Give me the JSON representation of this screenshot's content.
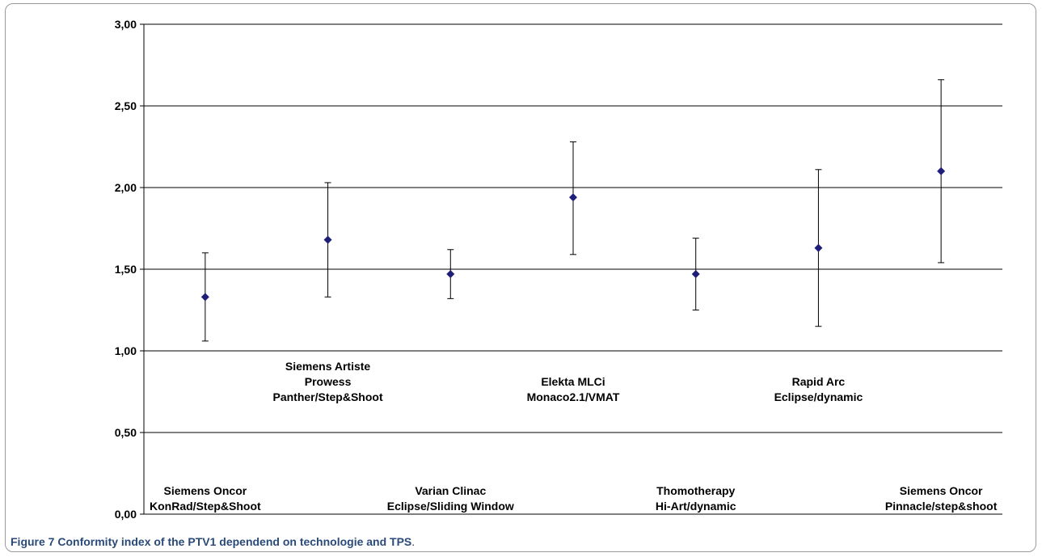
{
  "caption": {
    "label": "Figure 7",
    "text": "Conformity index of the PTV1 dependend on technologie and TPS",
    "end": "."
  },
  "colors": {
    "marker": "#1f1f7a",
    "grid": "#000000",
    "caption": "#2a4a7a"
  },
  "chart_data": {
    "type": "scatter",
    "error_bars": true,
    "ylim": [
      0,
      3
    ],
    "yticks": [
      0,
      0.5,
      1,
      1.5,
      2,
      2.5,
      3
    ],
    "ytick_labels": [
      "0,00",
      "0,50",
      "1,00",
      "1,50",
      "2,00",
      "2,50",
      "3,00"
    ],
    "grid": true,
    "categories": [
      {
        "lines": [
          "Siemens Oncor",
          "KonRad/Step&Shoot"
        ],
        "row": "low"
      },
      {
        "lines": [
          "Siemens Artiste",
          "Prowess",
          "Panther/Step&Shoot"
        ],
        "row": "high"
      },
      {
        "lines": [
          "Varian Clinac",
          "Eclipse/Sliding Window"
        ],
        "row": "low"
      },
      {
        "lines": [
          "Elekta MLCi",
          "Monaco2.1/VMAT"
        ],
        "row": "high"
      },
      {
        "lines": [
          "Thomotherapy",
          "Hi-Art/dynamic"
        ],
        "row": "low"
      },
      {
        "lines": [
          "Rapid Arc",
          "Eclipse/dynamic"
        ],
        "row": "high"
      },
      {
        "lines": [
          "Siemens Oncor",
          "Pinnacle/step&shoot"
        ],
        "row": "low"
      }
    ],
    "values": [
      1.33,
      1.68,
      1.47,
      1.94,
      1.47,
      1.63,
      2.1
    ],
    "err_low": [
      1.06,
      1.33,
      1.32,
      1.59,
      1.25,
      1.15,
      1.54
    ],
    "err_high": [
      1.6,
      2.03,
      1.62,
      2.28,
      1.69,
      2.11,
      2.66
    ]
  }
}
